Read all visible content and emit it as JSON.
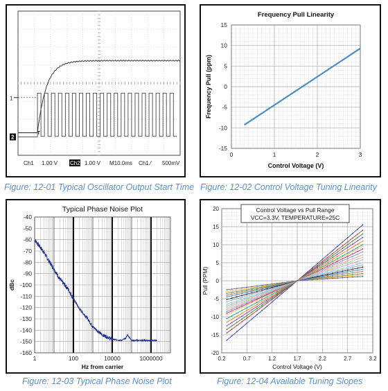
{
  "captions": {
    "fig1": "Figure: 12-01 Typical Oscillator Output Start Time",
    "fig2": "Figure: 12-02 Control Voltage Tuning Linearity",
    "fig3": "Figure: 12-03 Typical Phase Noise Plot",
    "fig4": "Figure: 12-04 Available Tuning Slopes"
  },
  "colors": {
    "caption": "#5b8fd0",
    "scope_grid": "#bfbfbf",
    "line_blue": "#4a8dc4",
    "phase_noise": "#1f2f8f"
  },
  "chart_data": [
    {
      "type": "line",
      "title": "",
      "scope_readout": {
        "ch1_label": "Ch1",
        "ch1_scale": "1.00 V",
        "ch2_label": "Ch2",
        "ch2_scale": "1.00 V",
        "timebase": "M10.0ms",
        "trigger": "Ch1 ⁄",
        "trigger_level": "500mV"
      },
      "markers": {
        "ch1": "1",
        "ch2": "2",
        "trigger": "T"
      },
      "grid": {
        "divisions_x": 10,
        "divisions_y": 8,
        "on": true
      },
      "series": [
        {
          "label": "Ch1",
          "shape": "rising exponential supply ramp starting at ~1.2 div",
          "start_div": 1.2,
          "settled_level_div": 5.25
        },
        {
          "label": "Ch2",
          "shape": "square wave oscillator output starting near 1.2 div",
          "cycles_visible": 20,
          "low_level_div": 1.05,
          "high_level_div": 3.45
        }
      ]
    },
    {
      "type": "line",
      "title": "Frequency Pull Linearity",
      "xlabel": "Control Voltage (V)",
      "ylabel": "Frequency Pull (ppm)",
      "xlim": [
        0,
        3
      ],
      "ylim": [
        -15,
        15
      ],
      "xticks": [
        0,
        1,
        2,
        3
      ],
      "yticks": [
        15,
        10,
        5,
        0,
        -5,
        -10,
        -15
      ],
      "grid": true,
      "series": [
        {
          "x": [
            0.3,
            1.65,
            3.0
          ],
          "y": [
            -9.3,
            0,
            9.3
          ]
        }
      ]
    },
    {
      "type": "line",
      "title": "Typical Phase Noise Plot",
      "xlabel": "Hz from carrier",
      "ylabel": "dBc",
      "xscale": "log",
      "xlim": [
        1,
        10000000
      ],
      "ylim": [
        -160,
        -40
      ],
      "xtick_labels": [
        "1",
        "100",
        "10000",
        "1000000"
      ],
      "yticks": [
        -40,
        -50,
        -60,
        -70,
        -80,
        -90,
        -100,
        -110,
        -120,
        -130,
        -140,
        -150,
        -160
      ],
      "grid": true,
      "series": [
        {
          "x": [
            1,
            2,
            3,
            5,
            10,
            20,
            50,
            100,
            200,
            500,
            1000,
            3000,
            10000,
            30000,
            50000,
            60000,
            100000,
            1000000,
            2000000
          ],
          "y": [
            -60,
            -67,
            -71,
            -78,
            -86,
            -95,
            -103,
            -112,
            -121,
            -129,
            -137,
            -144,
            -148,
            -149,
            -147,
            -144,
            -149,
            -149,
            -149
          ]
        }
      ]
    },
    {
      "type": "line",
      "title": "Control Voltage vs Pull Range",
      "subtitle": "VCC=3.3V, TEMPERATURE=25C",
      "xlabel": "Control Voltage (V)",
      "ylabel": "Pull (PPM)",
      "xlim": [
        0.2,
        3.2
      ],
      "ylim": [
        -20,
        20
      ],
      "xticks": [
        0.2,
        0.7,
        1.2,
        1.7,
        2.2,
        2.7,
        3.2
      ],
      "yticks": [
        20,
        15,
        10,
        5,
        0,
        -5,
        -10,
        -15,
        -20
      ],
      "grid": true,
      "pivot": [
        1.7,
        0
      ],
      "series": [
        {
          "color": "#3a4aa8",
          "x": [
            0.3,
            3.0
          ],
          "y": [
            -16.5,
            15.5
          ]
        },
        {
          "color": "#c23b3b",
          "x": [
            0.3,
            3.0
          ],
          "y": [
            -14.5,
            14.0
          ]
        },
        {
          "color": "#3b8f3b",
          "x": [
            0.3,
            3.0
          ],
          "y": [
            -13.5,
            13.0
          ]
        },
        {
          "color": "#8e44ad",
          "x": [
            0.3,
            3.0
          ],
          "y": [
            -12.5,
            12.0
          ]
        },
        {
          "color": "#e08a1e",
          "x": [
            0.3,
            3.0
          ],
          "y": [
            -11.5,
            11.0
          ]
        },
        {
          "color": "#2a9d8f",
          "x": [
            0.3,
            3.0
          ],
          "y": [
            -10.5,
            10.0
          ]
        },
        {
          "color": "#e9c46a",
          "x": [
            0.3,
            3.0
          ],
          "y": [
            -9.5,
            9.5
          ]
        },
        {
          "color": "#d62d7a",
          "x": [
            0.3,
            3.0
          ],
          "y": [
            -9.0,
            8.8
          ]
        },
        {
          "color": "#6c9bd2",
          "x": [
            0.3,
            3.0
          ],
          "y": [
            -8.5,
            8.0
          ]
        },
        {
          "color": "#f4a3a3",
          "x": [
            0.3,
            3.0
          ],
          "y": [
            -8.0,
            7.2
          ]
        },
        {
          "color": "#a8d08d",
          "x": [
            0.3,
            3.0
          ],
          "y": [
            -7.5,
            6.5
          ]
        },
        {
          "color": "#c9a0dc",
          "x": [
            0.3,
            3.0
          ],
          "y": [
            -7.0,
            5.8
          ]
        },
        {
          "color": "#7fd3d9",
          "x": [
            0.3,
            3.0
          ],
          "y": [
            -6.5,
            5.0
          ]
        },
        {
          "color": "#9aa6b0",
          "x": [
            0.3,
            3.0
          ],
          "y": [
            -5.8,
            4.4
          ]
        },
        {
          "color": "#1f2a44",
          "x": [
            0.3,
            3.0
          ],
          "y": [
            -5.2,
            3.8
          ]
        },
        {
          "color": "#4a7fb0",
          "x": [
            0.3,
            3.0
          ],
          "y": [
            -4.5,
            3.2
          ]
        },
        {
          "color": "#b07a4a",
          "x": [
            0.3,
            3.0
          ],
          "y": [
            -4.0,
            2.6
          ]
        },
        {
          "color": "#5e8f5e",
          "x": [
            0.3,
            3.0
          ],
          "y": [
            -3.5,
            2.0
          ]
        },
        {
          "color": "#ffb347",
          "x": [
            0.3,
            3.0
          ],
          "y": [
            -3.0,
            1.6
          ]
        },
        {
          "color": "#666699",
          "x": [
            0.3,
            3.0
          ],
          "y": [
            -2.5,
            1.2
          ]
        }
      ]
    }
  ]
}
